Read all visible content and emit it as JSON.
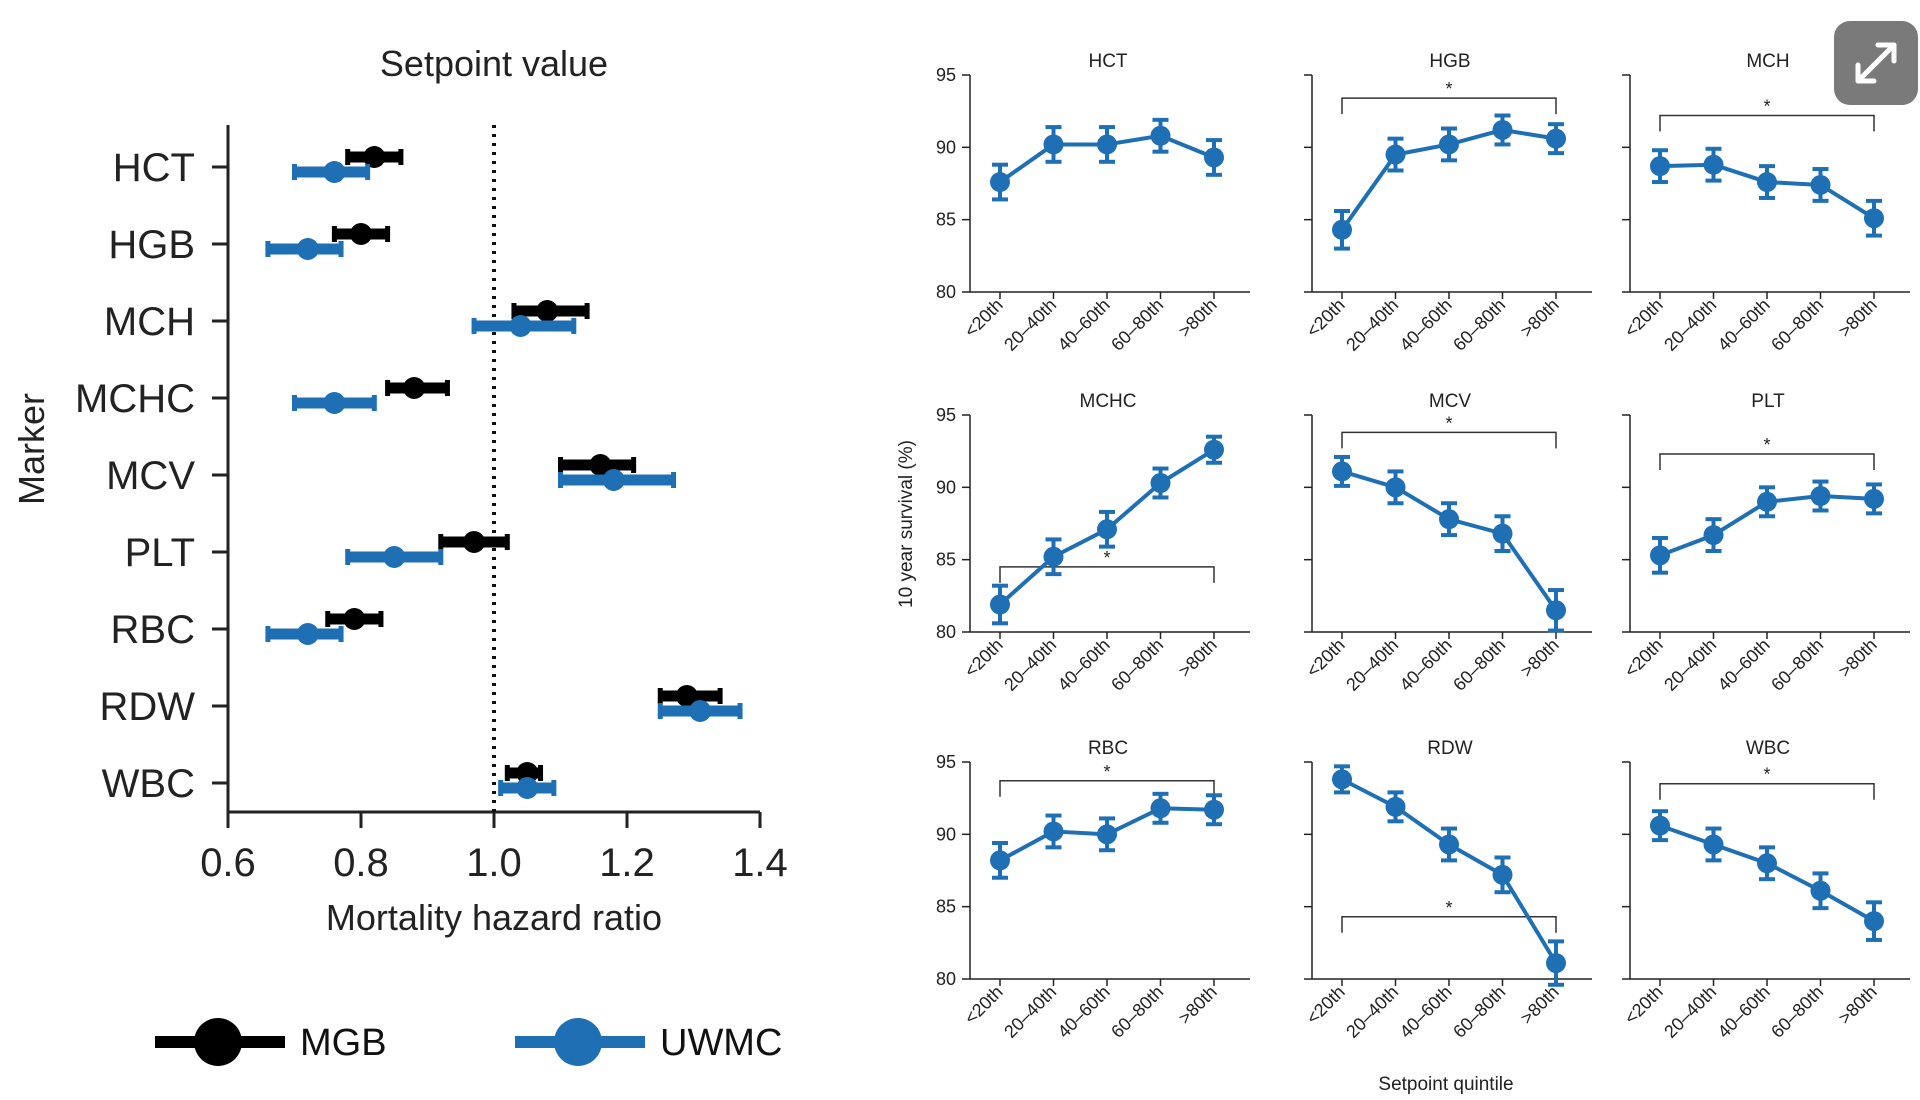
{
  "colors": {
    "mgb": "#000000",
    "uwmc": "#1f6fb5",
    "line": "#1f6fb5",
    "axis": "#222222"
  },
  "expand_icon": "expand-arrows-icon",
  "chart_data": [
    {
      "type": "scatter",
      "title": "Setpoint value",
      "xlabel": "Mortality hazard ratio",
      "ylabel": "Marker",
      "xlim": [
        0.6,
        1.4
      ],
      "xticks": [
        "0.6",
        "0.8",
        "1.0",
        "1.2",
        "1.4"
      ],
      "reference_line": 1.0,
      "categories": [
        "HCT",
        "HGB",
        "MCH",
        "MCHC",
        "MCV",
        "PLT",
        "RBC",
        "RDW",
        "WBC"
      ],
      "series": [
        {
          "name": "MGB",
          "values": [
            0.82,
            0.8,
            1.08,
            0.88,
            1.16,
            0.97,
            0.79,
            1.29,
            1.05
          ],
          "lower": [
            0.78,
            0.76,
            1.03,
            0.84,
            1.1,
            0.92,
            0.75,
            1.25,
            1.02
          ],
          "upper": [
            0.86,
            0.84,
            1.14,
            0.93,
            1.21,
            1.02,
            0.83,
            1.34,
            1.07
          ]
        },
        {
          "name": "UWMC",
          "values": [
            0.76,
            0.72,
            1.04,
            0.76,
            1.18,
            0.85,
            0.72,
            1.31,
            1.05
          ],
          "lower": [
            0.7,
            0.66,
            0.97,
            0.7,
            1.1,
            0.78,
            0.66,
            1.25,
            1.01
          ],
          "upper": [
            0.81,
            0.77,
            1.12,
            0.82,
            1.27,
            0.92,
            0.77,
            1.37,
            1.09
          ]
        }
      ],
      "legend": "bottom"
    },
    {
      "type": "line",
      "layout": "3x3 small multiples",
      "ylabel": "10 year survival (%)",
      "xlabel": "Setpoint quintile",
      "ylim": [
        80,
        95
      ],
      "yticks": [
        "95",
        "90",
        "85",
        "80"
      ],
      "categories": [
        "<20th",
        "20–40th",
        "40–60th",
        "60–80th",
        ">80th"
      ],
      "panels": [
        {
          "title": "HCT",
          "values": [
            87.6,
            90.2,
            90.2,
            90.8,
            89.3
          ],
          "err": [
            1.2,
            1.2,
            1.2,
            1.1,
            1.2
          ],
          "bracket": null
        },
        {
          "title": "HGB",
          "values": [
            84.3,
            89.5,
            90.2,
            91.2,
            90.6
          ],
          "err": [
            1.3,
            1.1,
            1.1,
            1.0,
            1.0
          ],
          "bracket": {
            "label": "*",
            "y": 93.4
          }
        },
        {
          "title": "MCH",
          "values": [
            88.7,
            88.8,
            87.6,
            87.4,
            85.1
          ],
          "err": [
            1.1,
            1.1,
            1.1,
            1.1,
            1.2
          ],
          "bracket": {
            "label": "*",
            "y": 92.2
          }
        },
        {
          "title": "MCHC",
          "values": [
            81.9,
            85.2,
            87.1,
            90.3,
            92.6
          ],
          "err": [
            1.3,
            1.2,
            1.2,
            1.0,
            0.9
          ],
          "bracket": {
            "label": "*",
            "y": 84.5
          }
        },
        {
          "title": "MCV",
          "values": [
            91.1,
            90.0,
            87.8,
            86.8,
            81.5
          ],
          "err": [
            1.0,
            1.1,
            1.1,
            1.2,
            1.4
          ],
          "bracket": {
            "label": "*",
            "y": 93.8
          }
        },
        {
          "title": "PLT",
          "values": [
            85.3,
            86.7,
            89.0,
            89.4,
            89.2
          ],
          "err": [
            1.2,
            1.1,
            1.0,
            1.0,
            1.0
          ],
          "bracket": {
            "label": "*",
            "y": 92.3
          }
        },
        {
          "title": "RBC",
          "values": [
            88.2,
            90.2,
            90.0,
            91.8,
            91.7
          ],
          "err": [
            1.2,
            1.1,
            1.1,
            1.0,
            1.0
          ],
          "bracket": {
            "label": "*",
            "y": 93.7
          }
        },
        {
          "title": "RDW",
          "values": [
            93.8,
            91.9,
            89.3,
            87.2,
            81.1
          ],
          "err": [
            0.9,
            1.0,
            1.1,
            1.2,
            1.5
          ],
          "bracket": {
            "label": "*",
            "y": 84.3
          }
        },
        {
          "title": "WBC",
          "values": [
            90.6,
            89.3,
            88.0,
            86.1,
            84.0
          ],
          "err": [
            1.0,
            1.1,
            1.1,
            1.2,
            1.3
          ],
          "bracket": {
            "label": "*",
            "y": 93.5
          }
        }
      ]
    }
  ]
}
